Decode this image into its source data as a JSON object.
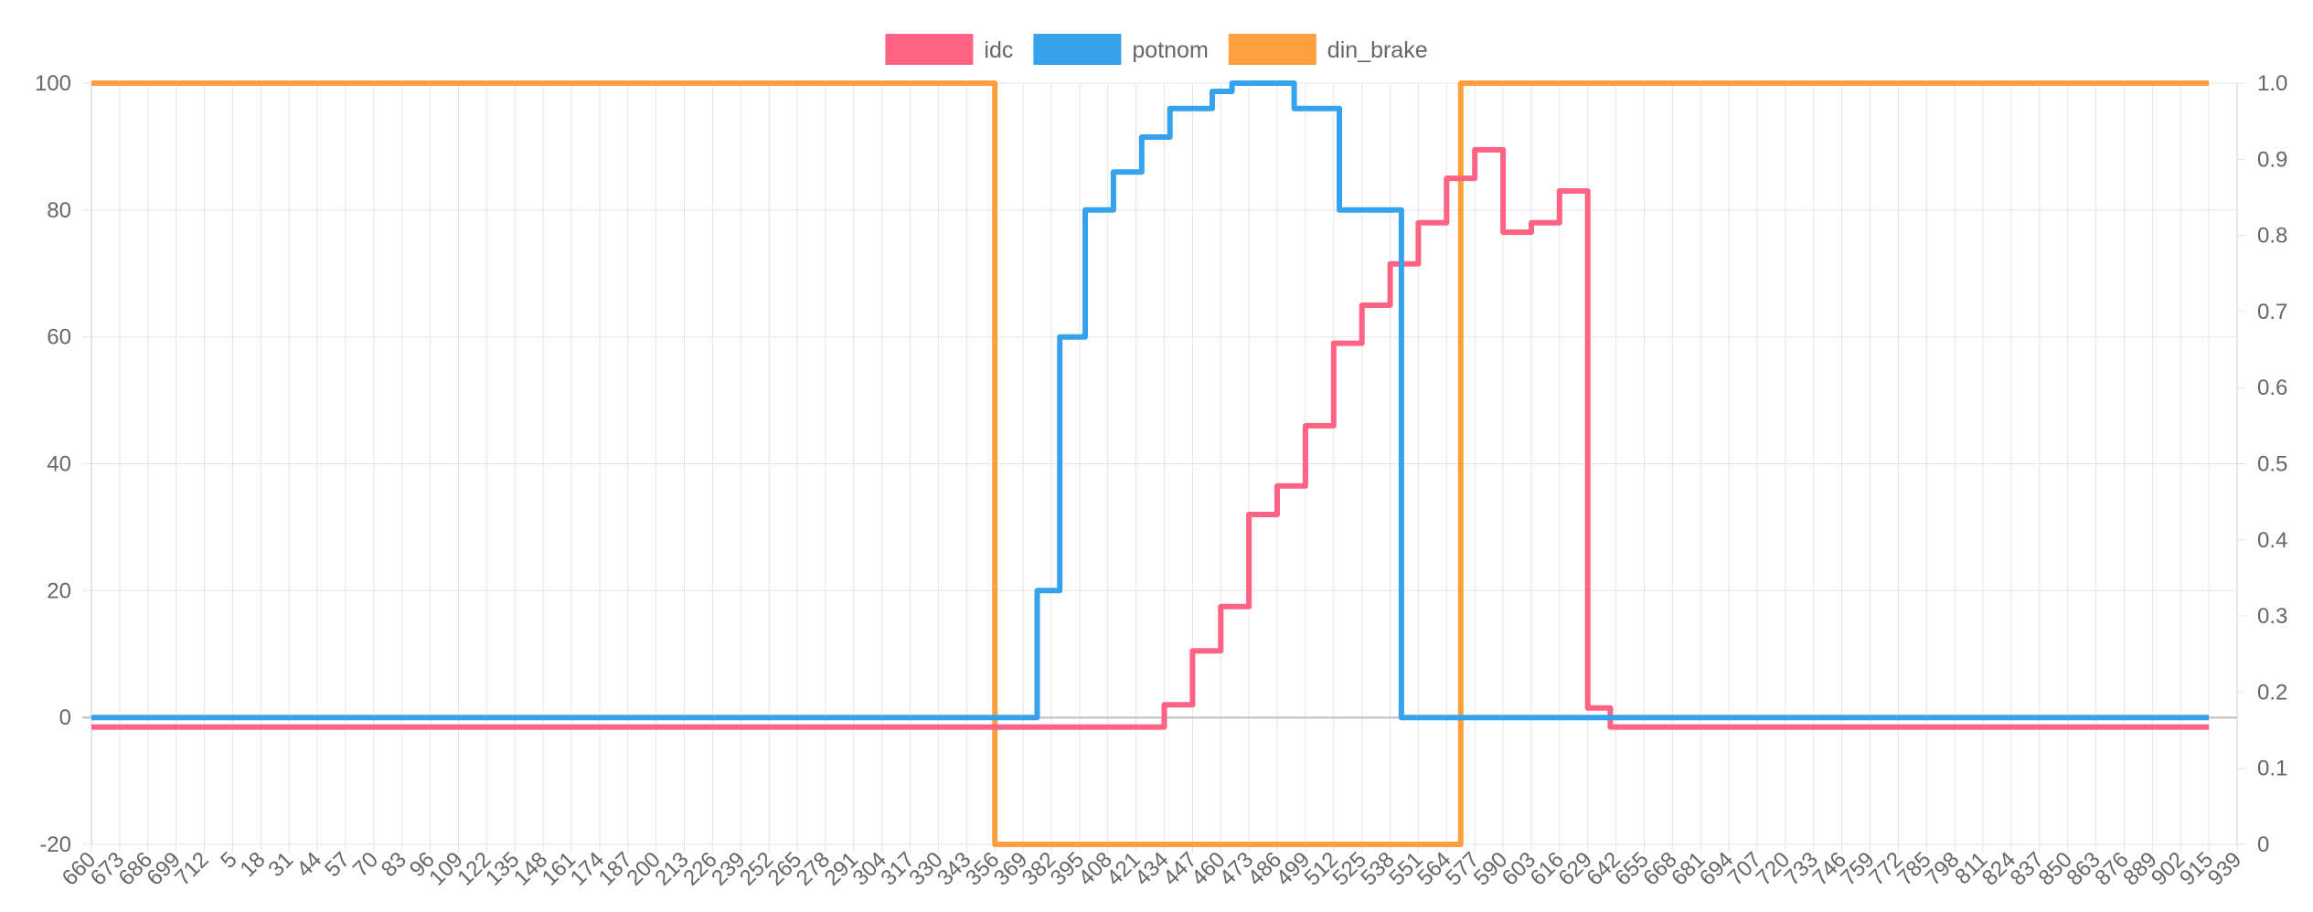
{
  "chart_data": {
    "type": "line",
    "stepped": true,
    "legend_position": "top",
    "grid": true,
    "colors": {
      "idc": "#ff6384",
      "potnom": "#36a2eb",
      "din_brake": "#ff9f40",
      "grid": "#e5e5e5",
      "zero_line": "#bdbdbd",
      "tick_text": "#666666"
    },
    "x_labels": [
      "660",
      "673",
      "686",
      "699",
      "712",
      "5",
      "18",
      "31",
      "44",
      "57",
      "70",
      "83",
      "96",
      "109",
      "122",
      "135",
      "148",
      "161",
      "174",
      "187",
      "200",
      "213",
      "226",
      "239",
      "252",
      "265",
      "278",
      "291",
      "304",
      "317",
      "330",
      "343",
      "356",
      "369",
      "382",
      "395",
      "408",
      "421",
      "434",
      "447",
      "460",
      "473",
      "486",
      "499",
      "512",
      "525",
      "538",
      "551",
      "564",
      "577",
      "590",
      "603",
      "616",
      "629",
      "642",
      "655",
      "668",
      "681",
      "694",
      "707",
      "720",
      "733",
      "746",
      "759",
      "772",
      "785",
      "798",
      "811",
      "824",
      "837",
      "850",
      "863",
      "876",
      "889",
      "902",
      "915",
      "939"
    ],
    "y_left": {
      "min": -20,
      "max": 100,
      "ticks": [
        "-20",
        "0",
        "20",
        "40",
        "60",
        "80",
        "100"
      ]
    },
    "y_right": {
      "min": 0,
      "max": 1,
      "ticks": [
        "0",
        "0.1",
        "0.2",
        "0.3",
        "0.4",
        "0.5",
        "0.6",
        "0.7",
        "0.8",
        "0.9",
        "1.0"
      ]
    },
    "series": [
      {
        "name": "idc",
        "axis": "left",
        "points": [
          [
            0,
            -1.5
          ],
          [
            38,
            -1.5
          ],
          [
            38,
            2
          ],
          [
            39,
            2
          ],
          [
            39,
            10.5
          ],
          [
            40,
            10.5
          ],
          [
            40,
            17.5
          ],
          [
            41,
            17.5
          ],
          [
            41,
            32
          ],
          [
            42,
            32
          ],
          [
            42,
            36.5
          ],
          [
            43,
            36.5
          ],
          [
            43,
            46
          ],
          [
            44,
            46
          ],
          [
            44,
            59
          ],
          [
            45,
            59
          ],
          [
            45,
            65
          ],
          [
            46,
            65
          ],
          [
            46,
            71.5
          ],
          [
            47,
            71.5
          ],
          [
            47,
            78
          ],
          [
            48,
            78
          ],
          [
            48,
            85
          ],
          [
            49,
            85
          ],
          [
            49,
            89.5
          ],
          [
            50,
            89.5
          ],
          [
            50,
            76.5
          ],
          [
            51,
            76.5
          ],
          [
            51,
            78
          ],
          [
            52,
            78
          ],
          [
            52,
            83
          ],
          [
            53,
            83
          ],
          [
            53,
            1.5
          ],
          [
            53.8,
            1.5
          ],
          [
            53.8,
            -1.5
          ],
          [
            75,
            -1.5
          ]
        ]
      },
      {
        "name": "potnom",
        "axis": "left",
        "points": [
          [
            0,
            0
          ],
          [
            33.5,
            0
          ],
          [
            33.5,
            20
          ],
          [
            34.3,
            20
          ],
          [
            34.3,
            60
          ],
          [
            35.2,
            60
          ],
          [
            35.2,
            80
          ],
          [
            36.2,
            80
          ],
          [
            36.2,
            86
          ],
          [
            37.2,
            86
          ],
          [
            37.2,
            91.5
          ],
          [
            38.2,
            91.5
          ],
          [
            38.2,
            96
          ],
          [
            39.7,
            96
          ],
          [
            39.7,
            98.7
          ],
          [
            40.4,
            98.7
          ],
          [
            40.4,
            100
          ],
          [
            42.6,
            100
          ],
          [
            42.6,
            96
          ],
          [
            44.2,
            96
          ],
          [
            44.2,
            80
          ],
          [
            46.4,
            80
          ],
          [
            46.4,
            0
          ],
          [
            75,
            0
          ]
        ]
      },
      {
        "name": "din_brake",
        "axis": "right",
        "points": [
          [
            0,
            1
          ],
          [
            32,
            1
          ],
          [
            32,
            0
          ],
          [
            48.5,
            0
          ],
          [
            48.5,
            1
          ],
          [
            75,
            1
          ]
        ]
      }
    ]
  }
}
